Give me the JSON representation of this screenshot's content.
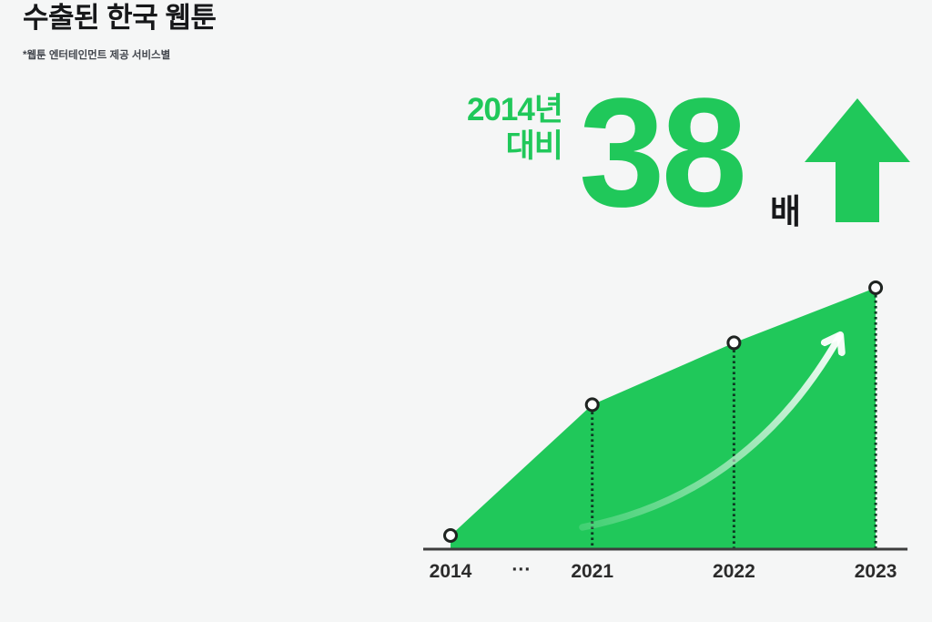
{
  "colors": {
    "accent_green": "#20c85a",
    "background": "#f5f6f6",
    "title_text": "#17181a",
    "footnote_text": "#42464d",
    "label_text": "#2b2b2b",
    "axis": "#3d3d3d",
    "dotted_line": "#0d3b23",
    "marker_ring": "#1f2421"
  },
  "header": {
    "title": "수출된 한국 웹툰",
    "footnote": "*웹툰 엔터테인먼트 제공 서비스별"
  },
  "stat": {
    "baseline_line1": "2014년",
    "baseline_line2": "대비",
    "multiplier_value": "38",
    "multiplier_unit": "배",
    "arrow_icon": "up-block-arrow"
  },
  "chart_data": {
    "type": "area",
    "title": "수출된 한국 웹툰",
    "categories": [
      "2014",
      "2021",
      "2022",
      "2023"
    ],
    "values": [
      1,
      21,
      30,
      38
    ],
    "x_axis_gap_marker": "···",
    "gap_after_index": 0,
    "ylim": [
      0,
      38
    ],
    "xlabel": "",
    "ylabel": "",
    "grid": false,
    "legend": false,
    "markers": "white-circle-dark-ring",
    "drop_lines": "dotted",
    "trend_arrow": true
  }
}
